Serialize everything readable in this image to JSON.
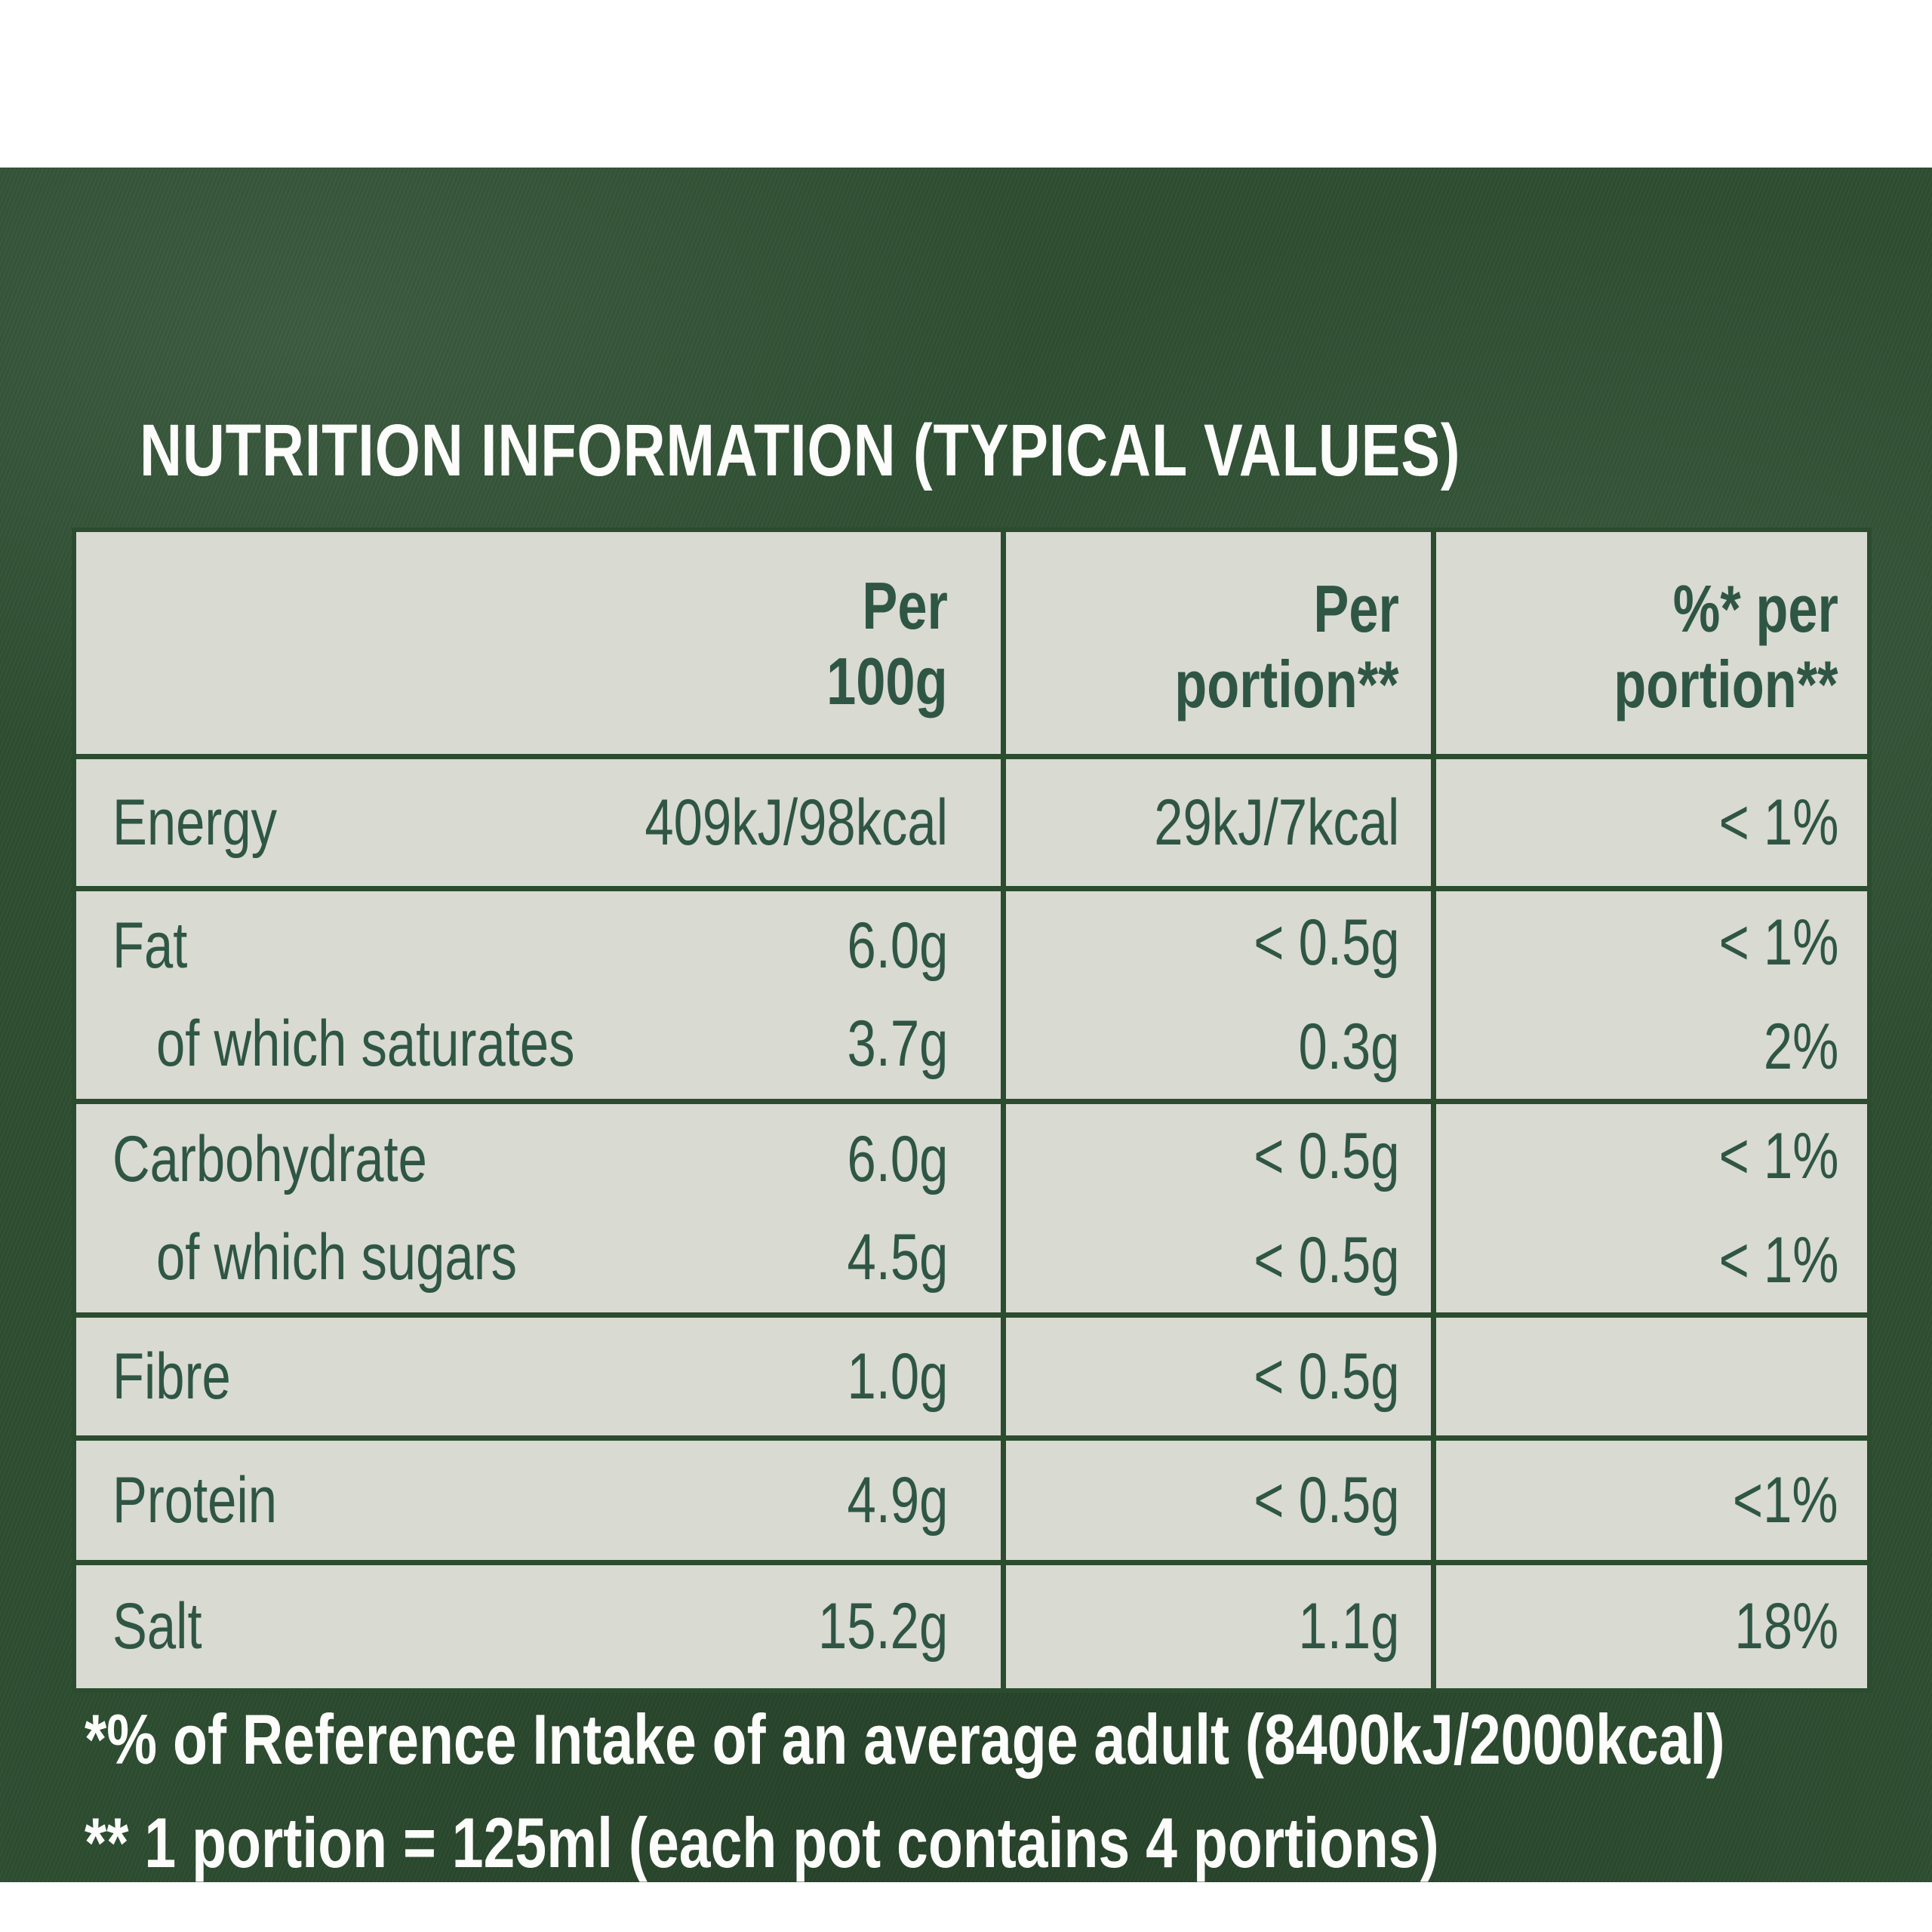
{
  "title": "NUTRITION INFORMATION (TYPICAL VALUES)",
  "table": {
    "header": {
      "per100": {
        "line1": "Per",
        "line2": "100g"
      },
      "portion": {
        "line1": "Per",
        "line2": "portion**"
      },
      "pct": {
        "line1": "%* per",
        "line2": "portion**"
      }
    },
    "rows": [
      {
        "label": "Energy",
        "per100": "409kJ/98kcal",
        "portion": "29kJ/7kcal",
        "pct": "< 1%"
      },
      {
        "label": "Fat",
        "per100": "6.0g",
        "portion": "< 0.5g",
        "pct": "< 1%",
        "sub": {
          "label": "of which saturates",
          "per100": "3.7g",
          "portion": "0.3g",
          "pct": "2%"
        }
      },
      {
        "label": "Carbohydrate",
        "per100": "6.0g",
        "portion": "< 0.5g",
        "pct": "< 1%",
        "sub": {
          "label": "of which sugars",
          "per100": "4.5g",
          "portion": "< 0.5g",
          "pct": "< 1%"
        }
      },
      {
        "label": "Fibre",
        "per100": "1.0g",
        "portion": "< 0.5g",
        "pct": ""
      },
      {
        "label": "Protein",
        "per100": "4.9g",
        "portion": "< 0.5g",
        "pct": "<1%"
      },
      {
        "label": "Salt",
        "per100": "15.2g",
        "portion": "1.1g",
        "pct": "18%"
      }
    ]
  },
  "footnotes": [
    "*% of Reference Intake of an average adult (8400kJ/2000kcal)",
    "** 1 portion = 125ml (each pot contains 4 portions)"
  ],
  "colors": {
    "page_bg": "#ffffff",
    "panel_green": "#2e4f32",
    "table_bg": "#d9dad2",
    "grid_green": "#2b4c2f",
    "table_text": "#2f5645",
    "text_white": "#fcfcfa"
  }
}
